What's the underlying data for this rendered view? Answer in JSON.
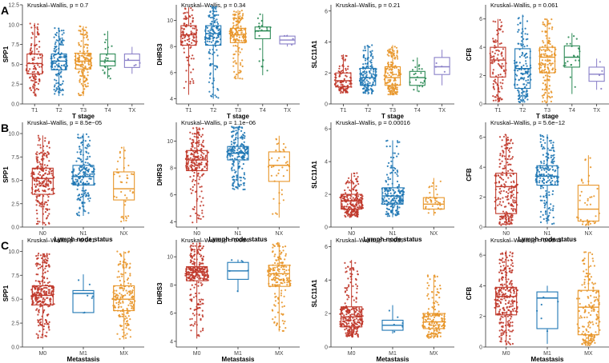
{
  "colors": {
    "T1": "#c0392b",
    "T2": "#1f77b4",
    "T3": "#e8962a",
    "T4": "#2e8b57",
    "TX": "#8a80c8",
    "N0": "#c0392b",
    "N1": "#1f77b4",
    "NX": "#e8962a",
    "M0": "#c0392b",
    "M1": "#1f77b4",
    "MX": "#e8962a"
  },
  "chart_data": [
    {
      "type": "box",
      "row": "A",
      "row_label": "A",
      "gene": "SPP1",
      "ylabel": "SPP1",
      "xlabel": "T stage",
      "title": "Kruskal–Wallis, p = 0.7",
      "ylim": [
        0,
        12.5
      ],
      "yticks": [
        "0.0",
        "2.5",
        "5.0",
        "7.5",
        "10.0",
        "12.5"
      ],
      "ytick_values": [
        0,
        2.5,
        5,
        7.5,
        10,
        12.5
      ],
      "categories": [
        "T1",
        "T2",
        "T3",
        "T4",
        "TX"
      ],
      "boxes": [
        {
          "q1": 3.8,
          "median": 5.1,
          "q3": 6.3,
          "whisker_low": 1.0,
          "whisker_high": 10.2,
          "n": 110
        },
        {
          "q1": 4.3,
          "median": 5.4,
          "q3": 6.3,
          "whisker_low": 1.0,
          "whisker_high": 9.6,
          "n": 150
        },
        {
          "q1": 4.4,
          "median": 5.4,
          "q3": 6.4,
          "whisker_low": 1.0,
          "whisker_high": 9.8,
          "n": 160
        },
        {
          "q1": 4.8,
          "median": 5.4,
          "q3": 6.3,
          "whisker_low": 3.2,
          "whisker_high": 9.2,
          "n": 22
        },
        {
          "q1": 4.6,
          "median": 5.5,
          "q3": 6.3,
          "whisker_low": 3.8,
          "whisker_high": 7.2,
          "n": 4
        }
      ]
    },
    {
      "type": "box",
      "row": "A",
      "gene": "DHRS3",
      "ylabel": "DHRS3",
      "xlabel": "T stage",
      "title": "Kruskal–Wallis, p = 0.34",
      "ylim": [
        3.6,
        11.2
      ],
      "yticks": [
        "4",
        "6",
        "8",
        "10"
      ],
      "ytick_values": [
        4,
        6,
        8,
        10
      ],
      "categories": [
        "T1",
        "T2",
        "T3",
        "T4",
        "TX"
      ],
      "boxes": [
        {
          "q1": 8.1,
          "median": 8.9,
          "q3": 9.6,
          "whisker_low": 4.3,
          "whisker_high": 11.0,
          "n": 110
        },
        {
          "q1": 8.1,
          "median": 9.0,
          "q3": 9.6,
          "whisker_low": 4.0,
          "whisker_high": 11.1,
          "n": 150
        },
        {
          "q1": 8.3,
          "median": 8.9,
          "q3": 9.4,
          "whisker_low": 5.5,
          "whisker_high": 10.8,
          "n": 160
        },
        {
          "q1": 8.6,
          "median": 9.2,
          "q3": 9.5,
          "whisker_low": 5.8,
          "whisker_high": 10.5,
          "n": 22
        },
        {
          "q1": 8.2,
          "median": 8.5,
          "q3": 8.8,
          "whisker_low": 8.0,
          "whisker_high": 8.9,
          "n": 4
        }
      ]
    },
    {
      "type": "box",
      "row": "A",
      "gene": "SLC11A1",
      "ylabel": "SLC11A1",
      "xlabel": "T stage",
      "title": "Kruskal–Wallis, p = 0.21",
      "ylim": [
        0,
        6.4
      ],
      "yticks": [
        "0",
        "2",
        "4",
        "6"
      ],
      "ytick_values": [
        0,
        2,
        4,
        6
      ],
      "categories": [
        "T1",
        "T2",
        "T3",
        "T4",
        "TX"
      ],
      "boxes": [
        {
          "q1": 1.1,
          "median": 1.5,
          "q3": 2.0,
          "whisker_low": 0.7,
          "whisker_high": 3.2,
          "n": 110
        },
        {
          "q1": 1.2,
          "median": 1.7,
          "q3": 2.3,
          "whisker_low": 0.6,
          "whisker_high": 3.8,
          "n": 150
        },
        {
          "q1": 1.2,
          "median": 1.7,
          "q3": 2.4,
          "whisker_low": 0.6,
          "whisker_high": 3.8,
          "n": 160
        },
        {
          "q1": 1.2,
          "median": 1.7,
          "q3": 2.1,
          "whisker_low": 0.8,
          "whisker_high": 3.0,
          "n": 22
        },
        {
          "q1": 1.9,
          "median": 2.4,
          "q3": 3.0,
          "whisker_low": 1.2,
          "whisker_high": 3.5,
          "n": 4
        }
      ]
    },
    {
      "type": "box",
      "row": "A",
      "gene": "CFB",
      "ylabel": "CFB",
      "xlabel": "T stage",
      "title": "Kruskal–Wallis, p = 0.061",
      "ylim": [
        0,
        7
      ],
      "yticks": [
        "0",
        "2",
        "4",
        "6"
      ],
      "ytick_values": [
        0,
        2,
        4,
        6
      ],
      "categories": [
        "T1",
        "T2",
        "T3",
        "T4",
        "TX"
      ],
      "boxes": [
        {
          "q1": 1.9,
          "median": 3.1,
          "q3": 4.0,
          "whisker_low": 0.1,
          "whisker_high": 6.0,
          "n": 110
        },
        {
          "q1": 1.1,
          "median": 2.5,
          "q3": 3.9,
          "whisker_low": 0.1,
          "whisker_high": 6.3,
          "n": 150
        },
        {
          "q1": 2.2,
          "median": 3.3,
          "q3": 4.0,
          "whisker_low": 0.1,
          "whisker_high": 6.0,
          "n": 160
        },
        {
          "q1": 2.6,
          "median": 3.3,
          "q3": 4.1,
          "whisker_low": 0.7,
          "whisker_high": 5.0,
          "n": 22
        },
        {
          "q1": 1.6,
          "median": 2.1,
          "q3": 2.6,
          "whisker_low": 1.0,
          "whisker_high": 3.2,
          "n": 4
        }
      ]
    },
    {
      "type": "box",
      "row": "B",
      "row_label": "B",
      "gene": "SPP1",
      "ylabel": "SPP1",
      "xlabel": "Lymph node status",
      "title": "Kruskal–Wallis, p = 8.5e−05",
      "ylim": [
        0,
        11.2
      ],
      "yticks": [
        "0.0",
        "2.5",
        "5.0",
        "7.5",
        "10.0"
      ],
      "ytick_values": [
        0,
        2.5,
        5,
        7.5,
        10
      ],
      "categories": [
        "N0",
        "N1",
        "NX"
      ],
      "boxes": [
        {
          "q1": 3.5,
          "median": 5.2,
          "q3": 6.3,
          "whisker_low": 0.2,
          "whisker_high": 9.8,
          "n": 230
        },
        {
          "q1": 4.5,
          "median": 5.4,
          "q3": 6.6,
          "whisker_low": 1.2,
          "whisker_high": 10.0,
          "n": 200
        },
        {
          "q1": 2.9,
          "median": 4.1,
          "q3": 5.9,
          "whisker_low": 0.6,
          "whisker_high": 8.6,
          "n": 40
        }
      ]
    },
    {
      "type": "box",
      "row": "B",
      "gene": "DHRS3",
      "ylabel": "DHRS3",
      "xlabel": "Lymph node status",
      "title": "Kruskal–Wallis, p = 1.1e−06",
      "ylim": [
        3.6,
        11.4
      ],
      "yticks": [
        "4",
        "6",
        "8",
        "10"
      ],
      "ytick_values": [
        4,
        6,
        8,
        10
      ],
      "categories": [
        "N0",
        "N1",
        "NX"
      ],
      "boxes": [
        {
          "q1": 7.8,
          "median": 8.6,
          "q3": 9.3,
          "whisker_low": 3.9,
          "whisker_high": 11.0,
          "n": 230
        },
        {
          "q1": 8.6,
          "median": 9.1,
          "q3": 9.6,
          "whisker_low": 6.4,
          "whisker_high": 11.1,
          "n": 200
        },
        {
          "q1": 7.0,
          "median": 8.2,
          "q3": 9.2,
          "whisker_low": 4.3,
          "whisker_high": 10.4,
          "n": 40
        }
      ]
    },
    {
      "type": "box",
      "row": "B",
      "gene": "SLC11A1",
      "ylabel": "SLC11A1",
      "xlabel": "Lymph node status",
      "title": "Kruskal–Wallis, p = 0.00016",
      "ylim": [
        0,
        6.4
      ],
      "yticks": [
        "0",
        "2",
        "4",
        "6"
      ],
      "ytick_values": [
        0,
        2,
        4,
        6
      ],
      "categories": [
        "N0",
        "N1",
        "NX"
      ],
      "boxes": [
        {
          "q1": 1.1,
          "median": 1.6,
          "q3": 2.0,
          "whisker_low": 0.6,
          "whisker_high": 3.3,
          "n": 230
        },
        {
          "q1": 1.4,
          "median": 1.9,
          "q3": 2.4,
          "whisker_low": 0.6,
          "whisker_high": 5.3,
          "n": 200
        },
        {
          "q1": 1.1,
          "median": 1.4,
          "q3": 1.8,
          "whisker_low": 0.7,
          "whisker_high": 3.0,
          "n": 40
        }
      ]
    },
    {
      "type": "box",
      "row": "B",
      "gene": "CFB",
      "ylabel": "CFB",
      "xlabel": "Lymph node status",
      "title": "Kruskal–Wallis, p = 5.6e−12",
      "ylim": [
        0,
        7
      ],
      "yticks": [
        "0",
        "2",
        "4",
        "6"
      ],
      "ytick_values": [
        0,
        2,
        4,
        6
      ],
      "categories": [
        "N0",
        "N1",
        "NX"
      ],
      "boxes": [
        {
          "q1": 0.9,
          "median": 2.7,
          "q3": 3.6,
          "whisker_low": 0.1,
          "whisker_high": 6.2,
          "n": 230
        },
        {
          "q1": 2.8,
          "median": 3.4,
          "q3": 4.1,
          "whisker_low": 0.2,
          "whisker_high": 6.2,
          "n": 200
        },
        {
          "q1": 0.4,
          "median": 1.2,
          "q3": 2.8,
          "whisker_low": 0.1,
          "whisker_high": 4.8,
          "n": 40
        }
      ]
    },
    {
      "type": "box",
      "row": "C",
      "row_label": "C",
      "gene": "SPP1",
      "ylabel": "SPP1",
      "xlabel": "Metastasis",
      "title": "Kruskal–Wallis, p = 0.041",
      "ylim": [
        0,
        11.2
      ],
      "yticks": [
        "0.0",
        "2.5",
        "5.0",
        "7.5",
        "10.0"
      ],
      "ytick_values": [
        0,
        2.5,
        5,
        7.5,
        10
      ],
      "categories": [
        "M0",
        "M1",
        "MX"
      ],
      "boxes": [
        {
          "q1": 4.4,
          "median": 5.4,
          "q3": 6.4,
          "whisker_low": 0.9,
          "whisker_high": 9.8,
          "n": 280
        },
        {
          "q1": 3.6,
          "median": 5.6,
          "q3": 5.9,
          "whisker_low": 3.5,
          "whisker_high": 7.6,
          "n": 6
        },
        {
          "q1": 3.8,
          "median": 5.0,
          "q3": 6.4,
          "whisker_low": 0.8,
          "whisker_high": 10.0,
          "n": 180
        }
      ]
    },
    {
      "type": "box",
      "row": "C",
      "gene": "DHRS3",
      "ylabel": "DHRS3",
      "xlabel": "Metastasis",
      "title": "Kruskal–Wallis, p = 0.084",
      "ylim": [
        3.6,
        11.2
      ],
      "yticks": [
        "4",
        "6",
        "8",
        "10"
      ],
      "ytick_values": [
        4,
        6,
        8,
        10
      ],
      "categories": [
        "M0",
        "M1",
        "MX"
      ],
      "boxes": [
        {
          "q1": 8.3,
          "median": 8.9,
          "q3": 9.3,
          "whisker_low": 4.2,
          "whisker_high": 11.0,
          "n": 280
        },
        {
          "q1": 8.4,
          "median": 9.0,
          "q3": 9.6,
          "whisker_low": 7.5,
          "whisker_high": 9.8,
          "n": 6
        },
        {
          "q1": 7.9,
          "median": 8.8,
          "q3": 9.4,
          "whisker_low": 4.7,
          "whisker_high": 11.0,
          "n": 180
        }
      ]
    },
    {
      "type": "box",
      "row": "C",
      "gene": "SLC11A1",
      "ylabel": "SLC11A1",
      "xlabel": "Metastasis",
      "title": "Kruskal–Wallis, p = 0.036",
      "ylim": [
        0,
        6.4
      ],
      "yticks": [
        "0",
        "2",
        "4",
        "6"
      ],
      "ytick_values": [
        0,
        2,
        4,
        6
      ],
      "categories": [
        "M0",
        "M1",
        "MX"
      ],
      "boxes": [
        {
          "q1": 1.2,
          "median": 1.8,
          "q3": 2.4,
          "whisker_low": 0.6,
          "whisker_high": 5.2,
          "n": 280
        },
        {
          "q1": 1.0,
          "median": 1.3,
          "q3": 1.6,
          "whisker_low": 0.8,
          "whisker_high": 2.5,
          "n": 6
        },
        {
          "q1": 1.1,
          "median": 1.5,
          "q3": 2.0,
          "whisker_low": 0.5,
          "whisker_high": 4.3,
          "n": 180
        }
      ]
    },
    {
      "type": "box",
      "row": "C",
      "gene": "CFB",
      "ylabel": "CFB",
      "xlabel": "Metastasis",
      "title": "Kruskal–Wallis, p = 0.0043",
      "ylim": [
        0,
        7
      ],
      "yticks": [
        "0",
        "2",
        "4",
        "6"
      ],
      "ytick_values": [
        0,
        2,
        4,
        6
      ],
      "categories": [
        "M0",
        "M1",
        "MX"
      ],
      "boxes": [
        {
          "q1": 2.1,
          "median": 3.3,
          "q3": 3.9,
          "whisker_low": 0.1,
          "whisker_high": 6.3,
          "n": 280
        },
        {
          "q1": 1.2,
          "median": 3.2,
          "q3": 3.6,
          "whisker_low": 0.2,
          "whisker_high": 4.0,
          "n": 6
        },
        {
          "q1": 0.8,
          "median": 2.6,
          "q3": 3.7,
          "whisker_low": 0.1,
          "whisker_high": 6.2,
          "n": 180
        }
      ]
    }
  ]
}
